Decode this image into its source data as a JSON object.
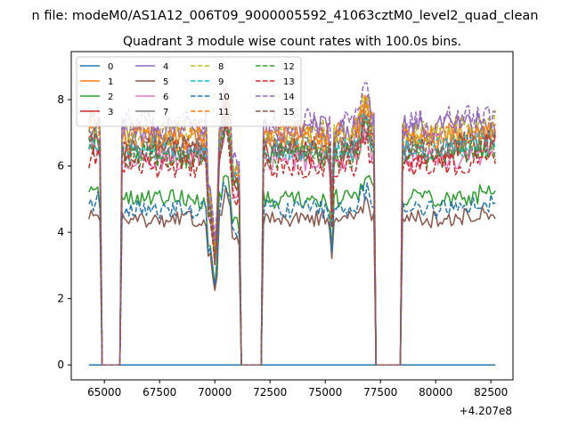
{
  "chart_data": {
    "type": "line",
    "suptitle": "n file: modeM0/AS1A12_006T09_9000005592_41063cztM0_level2_quad_clean",
    "title": "Quadrant 3 module wise count rates with 100.0s bins.",
    "xlabel": "",
    "ylabel": "",
    "x_offset_label": "+4.207e8",
    "xlim": [
      63500,
      83500
    ],
    "ylim": [
      -0.45,
      9.45
    ],
    "xticks": [
      65000,
      67500,
      70000,
      72500,
      75000,
      77500,
      80000,
      82500
    ],
    "xtick_labels": [
      "65000",
      "67500",
      "70000",
      "72500",
      "75000",
      "77500",
      "80000",
      "82500"
    ],
    "yticks": [
      0,
      2,
      4,
      6,
      8
    ],
    "ytick_labels": [
      "0",
      "2",
      "4",
      "6",
      "8"
    ],
    "x_range": [
      64300,
      82700
    ],
    "gaps": [
      [
        64800,
        65800
      ],
      [
        71150,
        72150
      ],
      [
        77200,
        78500
      ]
    ],
    "legend_position": "upper-left",
    "series": [
      {
        "name": "0",
        "color": "#1f77b4",
        "style": "solid",
        "level": 0
      },
      {
        "name": "1",
        "color": "#ff7f0e",
        "style": "solid",
        "level": 6.9
      },
      {
        "name": "2",
        "color": "#2ca02c",
        "style": "solid",
        "level": 5.0
      },
      {
        "name": "3",
        "color": "#d62728",
        "style": "solid",
        "level": 6.4
      },
      {
        "name": "4",
        "color": "#9467bd",
        "style": "solid",
        "level": 7.1
      },
      {
        "name": "5",
        "color": "#8c564b",
        "style": "solid",
        "level": 4.4
      },
      {
        "name": "6",
        "color": "#e377c2",
        "style": "solid",
        "level": 6.2
      },
      {
        "name": "7",
        "color": "#7f7f7f",
        "style": "solid",
        "level": 6.6
      },
      {
        "name": "8",
        "color": "#bcbd22",
        "style": "dashed",
        "level": 7.0
      },
      {
        "name": "9",
        "color": "#17becf",
        "style": "dashed",
        "level": 6.5
      },
      {
        "name": "10",
        "color": "#1f77b4",
        "style": "dashed",
        "level": 4.7
      },
      {
        "name": "11",
        "color": "#ff7f0e",
        "style": "dashed",
        "level": 6.8
      },
      {
        "name": "12",
        "color": "#2ca02c",
        "style": "dashed",
        "level": 6.3
      },
      {
        "name": "13",
        "color": "#d62728",
        "style": "dashed",
        "level": 6.0
      },
      {
        "name": "14",
        "color": "#9467bd",
        "style": "dashed",
        "level": 7.3
      },
      {
        "name": "15",
        "color": "#8c564b",
        "style": "dashed",
        "level": 6.5
      }
    ]
  }
}
